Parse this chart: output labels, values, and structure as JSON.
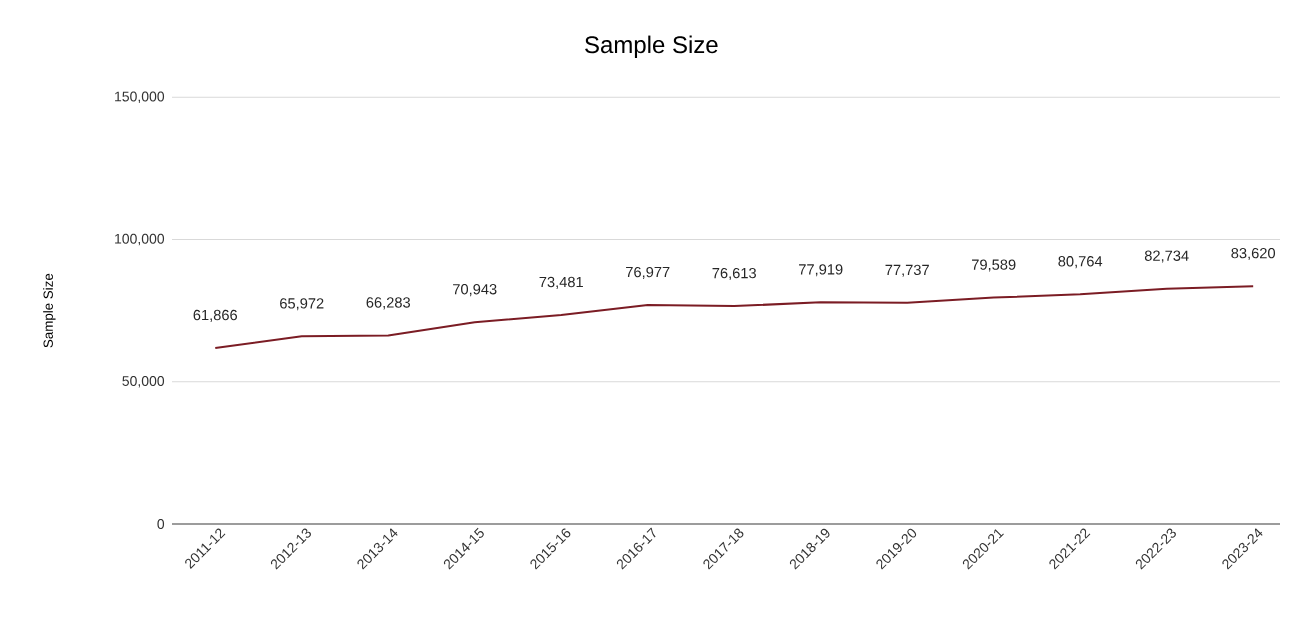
{
  "chart_data": {
    "type": "line",
    "title": "Sample Size",
    "ylabel": "Sample Size",
    "categories": [
      "2011-12",
      "2012-13",
      "2013-14",
      "2014-15",
      "2015-16",
      "2016-17",
      "2017-18",
      "2018-19",
      "2019-20",
      "2020-21",
      "2021-22",
      "2022-23",
      "2023-24"
    ],
    "series": [
      {
        "color": "#7b1c24",
        "values": [
          61866,
          65972,
          66283,
          70943,
          73481,
          76977,
          76613,
          77919,
          77737,
          79589,
          80764,
          82734,
          83620
        ],
        "value_labels": [
          "61,866",
          "65,972",
          "66,283",
          "70,943",
          "73,481",
          "76,977",
          "76,613",
          "77,919",
          "77,737",
          "79,589",
          "80,764",
          "82,734",
          "83,620"
        ]
      }
    ],
    "ylim": [
      0,
      150000
    ],
    "yticks": [
      {
        "value": 0,
        "label": "0"
      },
      {
        "value": 50000,
        "label": "50,000"
      },
      {
        "value": 100000,
        "label": "100,000"
      },
      {
        "value": 150000,
        "label": "150,000"
      }
    ],
    "grid": "y",
    "marker": "none",
    "line_style": "solid"
  }
}
